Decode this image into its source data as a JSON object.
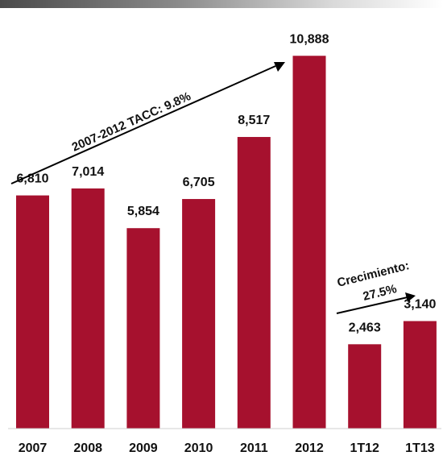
{
  "chart_data": {
    "type": "bar",
    "categories": [
      "2007",
      "2008",
      "2009",
      "2010",
      "2011",
      "2012",
      "1T12",
      "1T13"
    ],
    "values": [
      6810,
      7014,
      5854,
      6705,
      8517,
      10888,
      2463,
      3140
    ],
    "value_labels": [
      "6,810",
      "7,014",
      "5,854",
      "6,705",
      "8,517",
      "10,888",
      "2,463",
      "3,140"
    ],
    "title": "",
    "xlabel": "",
    "ylabel": "",
    "ylim": [
      0,
      12000
    ],
    "grid": false,
    "legend": "none",
    "bar_color": "#a6112e",
    "annotations": [
      {
        "text": "2007-2012 TACC: 9.8%"
      },
      {
        "text": "Crecimiento:",
        "text2": "27.5%"
      }
    ]
  }
}
